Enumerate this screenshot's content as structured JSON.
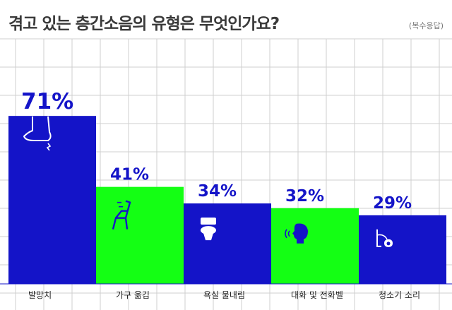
{
  "title": "겪고 있는 층간소음의 유형은 무엇인가요?",
  "subtitle": "(복수응답)",
  "colors": {
    "blue": "#1414c8",
    "green": "#14ff14",
    "grid": "#cfcfcf",
    "text": "#222222"
  },
  "chart_data": {
    "type": "bar",
    "categories": [
      "발망치",
      "가구 옮김",
      "욕실 물내림",
      "대화 및 전화벨",
      "청소기 소리"
    ],
    "values": [
      71,
      41,
      34,
      32,
      29
    ],
    "labels": [
      "71%",
      "41%",
      "34%",
      "32%",
      "29%"
    ],
    "bar_colors": [
      "blue",
      "green",
      "blue",
      "green",
      "blue"
    ],
    "icons": [
      "foot-icon",
      "chair-drag-icon",
      "toilet-icon",
      "speaking-icon",
      "vacuum-cleaner-icon"
    ],
    "ylim": [
      0,
      100
    ],
    "grid": true
  }
}
